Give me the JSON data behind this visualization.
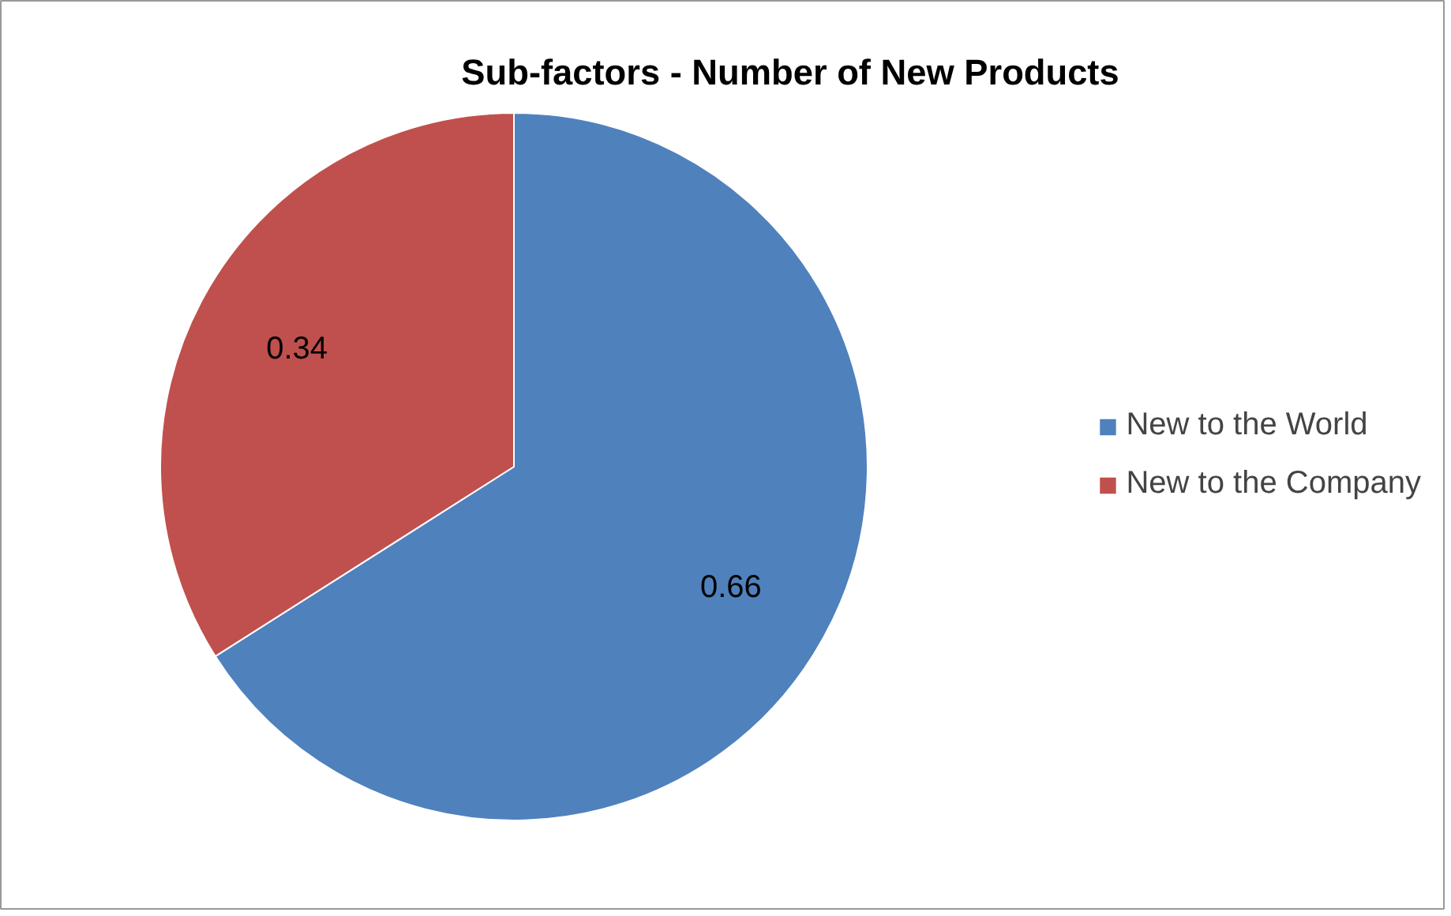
{
  "chart_data": {
    "type": "pie",
    "title": "Sub-factors - Number of New Products",
    "categories": [
      "New to the World",
      "New to the Company"
    ],
    "values": [
      0.66,
      0.34
    ],
    "colors": [
      "#4f81bd",
      "#c0504d"
    ],
    "data_labels": true,
    "legend": "right"
  }
}
